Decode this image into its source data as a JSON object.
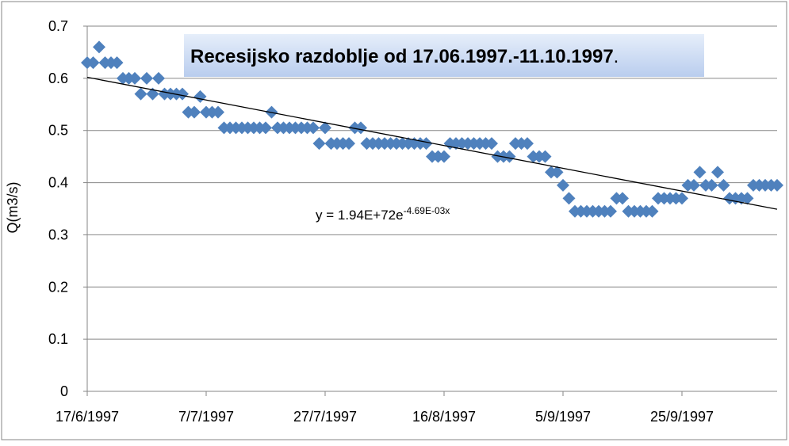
{
  "chart_data": {
    "type": "scatter",
    "title": "Recesijsko razdoblje od 17.06.1997.-11.10.1997",
    "title_end": ".",
    "y_label": "Q(m3/s)",
    "color": "#4f81bd",
    "x": [
      "17/6/1997",
      "18/6/1997",
      "19/6/1997",
      "20/6/1997",
      "21/6/1997",
      "22/6/1997",
      "23/6/1997",
      "24/6/1997",
      "25/6/1997",
      "26/6/1997",
      "27/6/1997",
      "28/6/1997",
      "29/6/1997",
      "30/6/1997",
      "1/7/1997",
      "2/7/1997",
      "3/7/1997",
      "4/7/1997",
      "5/7/1997",
      "6/7/1997",
      "7/7/1997",
      "8/7/1997",
      "9/7/1997",
      "10/7/1997",
      "11/7/1997",
      "12/7/1997",
      "13/7/1997",
      "14/7/1997",
      "15/7/1997",
      "16/7/1997",
      "17/7/1997",
      "18/7/1997",
      "19/7/1997",
      "20/7/1997",
      "21/7/1997",
      "22/7/1997",
      "23/7/1997",
      "24/7/1997",
      "25/7/1997",
      "26/7/1997",
      "27/7/1997",
      "28/7/1997",
      "29/7/1997",
      "30/7/1997",
      "31/7/1997",
      "1/8/1997",
      "2/8/1997",
      "3/8/1997",
      "4/8/1997",
      "5/8/1997",
      "6/8/1997",
      "7/8/1997",
      "8/8/1997",
      "9/8/1997",
      "10/8/1997",
      "11/8/1997",
      "12/8/1997",
      "13/8/1997",
      "14/8/1997",
      "15/8/1997",
      "16/8/1997",
      "17/8/1997",
      "18/8/1997",
      "19/8/1997",
      "20/8/1997",
      "21/8/1997",
      "22/8/1997",
      "23/8/1997",
      "24/8/1997",
      "25/8/1997",
      "26/8/1997",
      "27/8/1997",
      "28/8/1997",
      "29/8/1997",
      "30/8/1997",
      "31/8/1997",
      "1/9/1997",
      "2/9/1997",
      "3/9/1997",
      "4/9/1997",
      "5/9/1997",
      "6/9/1997",
      "7/9/1997",
      "8/9/1997",
      "9/9/1997",
      "10/9/1997",
      "11/9/1997",
      "12/9/1997",
      "13/9/1997",
      "14/9/1997",
      "15/9/1997",
      "16/9/1997",
      "17/9/1997",
      "18/9/1997",
      "19/9/1997",
      "20/9/1997",
      "21/9/1997",
      "22/9/1997",
      "23/9/1997",
      "24/9/1997",
      "25/9/1997",
      "26/9/1997",
      "27/9/1997",
      "28/9/1997",
      "29/9/1997",
      "30/9/1997",
      "1/10/1997",
      "2/10/1997",
      "3/10/1997",
      "4/10/1997",
      "5/10/1997",
      "6/10/1997",
      "7/10/1997",
      "8/10/1997",
      "9/10/1997",
      "10/10/1997",
      "11/10/1997"
    ],
    "values": [
      0.63,
      0.63,
      0.66,
      0.63,
      0.63,
      0.63,
      0.6,
      0.6,
      0.6,
      0.57,
      0.6,
      0.57,
      0.6,
      0.57,
      0.57,
      0.57,
      0.57,
      0.535,
      0.535,
      0.565,
      0.535,
      0.535,
      0.535,
      0.505,
      0.505,
      0.505,
      0.505,
      0.505,
      0.505,
      0.505,
      0.505,
      0.535,
      0.505,
      0.505,
      0.505,
      0.505,
      0.505,
      0.505,
      0.505,
      0.475,
      0.505,
      0.475,
      0.475,
      0.475,
      0.475,
      0.505,
      0.505,
      0.475,
      0.475,
      0.475,
      0.475,
      0.475,
      0.475,
      0.475,
      0.475,
      0.475,
      0.475,
      0.475,
      0.45,
      0.45,
      0.45,
      0.475,
      0.475,
      0.475,
      0.475,
      0.475,
      0.475,
      0.475,
      0.475,
      0.45,
      0.45,
      0.45,
      0.475,
      0.475,
      0.475,
      0.45,
      0.45,
      0.45,
      0.42,
      0.42,
      0.395,
      0.37,
      0.345,
      0.345,
      0.345,
      0.345,
      0.345,
      0.345,
      0.345,
      0.37,
      0.37,
      0.345,
      0.345,
      0.345,
      0.345,
      0.345,
      0.37,
      0.37,
      0.37,
      0.37,
      0.37,
      0.395,
      0.395,
      0.42,
      0.395,
      0.395,
      0.42,
      0.395,
      0.37,
      0.37,
      0.37,
      0.37,
      0.395,
      0.395,
      0.395,
      0.395,
      0.395
    ],
    "xlim": [
      "17/6/1997",
      "11/10/1997"
    ],
    "xticks": [
      "17/6/1997",
      "7/7/1997",
      "27/7/1997",
      "16/8/1997",
      "5/9/1997",
      "25/9/1997"
    ],
    "ylim": [
      0,
      0.7
    ],
    "yticks": [
      0,
      0.1,
      0.2,
      0.3,
      0.4,
      0.5,
      0.6,
      0.7
    ],
    "grid": true,
    "trendline": {
      "x": [
        "17/6/1997",
        "11/10/1997"
      ],
      "values": [
        0.602,
        0.349
      ],
      "label": "y = 1.94E+72e",
      "exponent": "-4.69E-03x"
    }
  }
}
